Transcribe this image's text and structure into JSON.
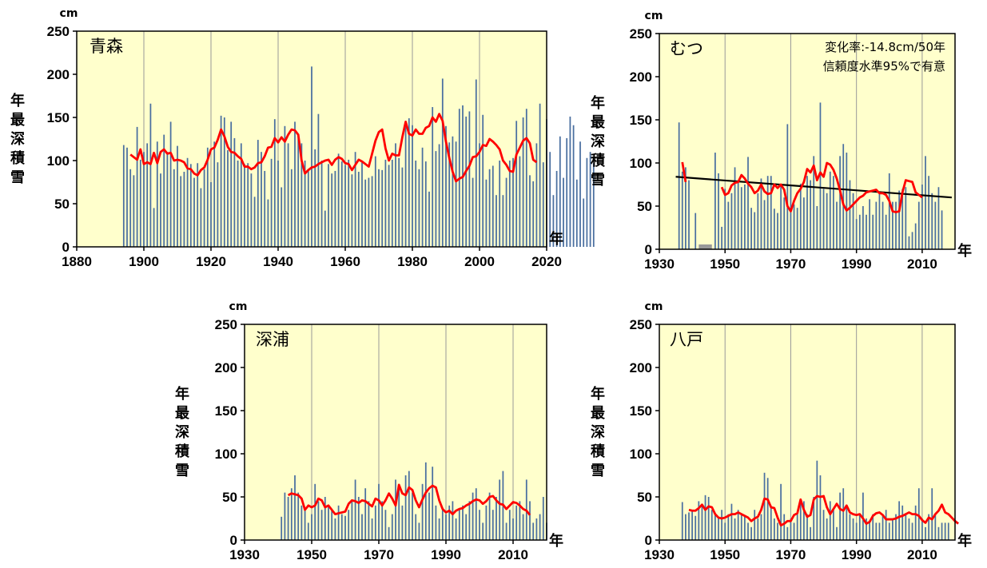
{
  "chart_data": [
    {
      "type": "bar",
      "station": "青森",
      "unit_label": "cm",
      "ylabel": "年最深積雪",
      "xlabel_suffix": "年",
      "xlim": [
        1880,
        2020
      ],
      "ylim": [
        0,
        250
      ],
      "xticks": [
        "1880",
        "1900",
        "1920",
        "1940",
        "1960",
        "1980",
        "2000",
        "2020"
      ],
      "yticks": [
        "0",
        "50",
        "100",
        "150",
        "200",
        "250"
      ],
      "note": [],
      "missing_ranges": [],
      "trend": null,
      "series": [
        {
          "name": "",
          "kind": "bar",
          "color": "#4a6fa0",
          "start_year": 1894,
          "values": [
            118,
            115,
            90,
            83,
            139,
            101,
            110,
            120,
            166,
            45,
            122,
            85,
            130,
            110,
            145,
            90,
            117,
            82,
            87,
            103,
            96,
            80,
            97,
            68,
            90,
            115,
            75,
            122,
            98,
            152,
            150,
            112,
            145,
            126,
            100,
            120,
            96,
            97,
            85,
            58,
            124,
            110,
            88,
            55,
            102,
            148,
            100,
            69,
            140,
            120,
            90,
            145,
            130,
            120,
            100,
            90,
            209,
            113,
            154,
            100,
            42,
            96,
            85,
            88,
            108,
            99,
            95,
            101,
            84,
            110,
            87,
            100,
            78,
            80,
            82,
            105,
            90,
            89,
            101,
            95,
            101,
            120,
            103,
            92,
            141,
            149,
            141,
            100,
            90,
            115,
            99,
            64,
            162,
            111,
            119,
            195,
            140,
            121,
            128,
            122,
            160,
            164,
            151,
            157,
            80,
            194,
            120,
            153,
            78,
            90,
            94,
            60,
            100,
            60,
            80,
            100,
            103,
            146,
            105,
            150,
            160,
            83,
            76,
            120,
            166,
            98,
            148,
            110,
            60,
            88,
            128,
            80,
            126,
            151,
            141,
            78,
            122,
            56,
            103,
            110,
            97
          ]
        },
        {
          "name": "",
          "kind": "line",
          "color": "#ff0000",
          "start_year": 1896,
          "values": [
            107,
            104,
            101,
            113,
            96,
            98,
            96,
            109,
            97,
            110,
            113,
            108,
            109,
            100,
            101,
            100,
            98,
            91,
            90,
            85,
            83,
            89,
            92,
            101,
            113,
            115,
            124,
            136,
            128,
            116,
            110,
            109,
            105,
            102,
            93,
            93,
            90,
            92,
            97,
            98,
            105,
            115,
            116,
            126,
            121,
            127,
            122,
            130,
            136,
            135,
            130,
            100,
            85,
            89,
            92,
            93,
            96,
            98,
            100,
            101,
            95,
            101,
            104,
            102,
            97,
            96,
            89,
            95,
            101,
            99,
            96,
            93,
            108,
            123,
            133,
            136,
            114,
            100,
            108,
            106,
            106,
            127,
            145,
            131,
            129,
            136,
            131,
            131,
            138,
            140,
            150,
            145,
            154,
            146,
            122,
            103,
            87,
            76,
            79,
            81,
            88,
            94,
            104,
            105,
            110,
            118,
            117,
            125,
            122,
            118,
            113,
            100,
            95,
            88,
            87,
            107,
            115,
            123,
            126,
            120,
            101,
            98
          ]
        }
      ]
    },
    {
      "type": "bar",
      "station": "むつ",
      "unit_label": "cm",
      "ylabel": "年最深積雪",
      "xlabel_suffix": "年",
      "xlim": [
        1930,
        2020
      ],
      "ylim": [
        0,
        250
      ],
      "xticks": [
        "1930",
        "1950",
        "1970",
        "1990",
        "2010"
      ],
      "yticks": [
        "0",
        "50",
        "100",
        "150",
        "200",
        "250"
      ],
      "note": [
        "変化率:-14.8cm/50年",
        "信頼度水準95%で有意"
      ],
      "missing_ranges": [
        [
          1942,
          1946
        ]
      ],
      "trend": {
        "color": "#000000",
        "x": [
          1935,
          2019
        ],
        "y": [
          84,
          60
        ]
      },
      "series": [
        {
          "name": "",
          "kind": "bar",
          "color": "#4a6fa0",
          "start_year": 1936,
          "values": [
            147,
            90,
            95,
            80,
            0,
            42,
            0,
            0,
            0,
            0,
            0,
            112,
            88,
            26,
            70,
            55,
            65,
            95,
            80,
            72,
            75,
            107,
            48,
            43,
            65,
            82,
            57,
            85,
            85,
            47,
            42,
            75,
            60,
            145,
            73,
            52,
            48,
            76,
            60,
            85,
            80,
            108,
            50,
            170,
            70,
            65,
            90,
            85,
            55,
            108,
            122,
            112,
            80,
            65,
            35,
            40,
            50,
            40,
            58,
            40,
            55,
            65,
            55,
            40,
            88,
            55,
            55,
            68,
            70,
            72,
            15,
            20,
            30,
            55,
            75,
            108,
            85,
            65,
            55,
            72,
            45
          ]
        },
        {
          "name": "",
          "kind": "line",
          "color": "#ff0000",
          "start_year": 1937,
          "values": [
            101,
            78
          ]
        },
        {
          "name": "",
          "kind": "line",
          "color": "#ff0000",
          "start_year": 1949,
          "values": [
            72,
            63,
            65,
            74,
            77,
            78,
            86,
            82,
            76,
            72,
            65,
            68,
            75,
            67,
            64,
            65,
            75,
            71,
            75,
            69,
            50,
            44,
            56,
            65,
            70,
            78,
            93,
            89,
            97,
            80,
            89,
            84,
            100,
            98,
            92,
            82,
            68,
            52,
            45,
            48,
            52,
            56,
            60,
            62,
            66,
            67,
            68,
            69,
            65,
            65,
            63,
            56,
            44,
            43,
            44,
            66,
            80,
            79,
            78,
            66,
            63,
            60
          ]
        }
      ]
    },
    {
      "type": "bar",
      "station": "深浦",
      "unit_label": "cm",
      "ylabel": "年最深積雪",
      "xlabel_suffix": "年",
      "xlim": [
        1930,
        2020
      ],
      "ylim": [
        0,
        250
      ],
      "xticks": [
        "1930",
        "1950",
        "1970",
        "1990",
        "2010"
      ],
      "yticks": [
        "0",
        "50",
        "100",
        "150",
        "200",
        "250"
      ],
      "note": [],
      "missing_ranges": [],
      "trend": null,
      "series": [
        {
          "name": "",
          "kind": "bar",
          "color": "#4a6fa0",
          "start_year": 1941,
          "values": [
            27,
            55,
            50,
            60,
            75,
            55,
            40,
            35,
            20,
            30,
            65,
            45,
            35,
            50,
            40,
            35,
            25,
            40,
            30,
            28,
            35,
            45,
            70,
            50,
            30,
            60,
            45,
            25,
            40,
            65,
            45,
            35,
            15,
            30,
            70,
            60,
            40,
            75,
            80,
            55,
            30,
            20,
            65,
            90,
            55,
            85,
            40,
            25,
            35,
            30,
            40,
            45,
            25,
            35,
            40,
            30,
            45,
            55,
            60,
            35,
            20,
            40,
            55,
            35,
            50,
            70,
            80,
            20,
            35,
            25,
            40,
            45,
            30,
            70,
            45,
            20,
            25,
            30,
            50,
            20
          ]
        },
        {
          "name": "",
          "kind": "line",
          "color": "#ff0000",
          "start_year": 1943,
          "values": [
            52,
            54,
            53,
            52,
            48,
            35,
            40,
            38,
            40,
            48,
            46,
            38,
            40,
            35,
            30,
            31,
            32,
            33,
            42,
            46,
            45,
            43,
            46,
            45,
            42,
            39,
            48,
            46,
            40,
            46,
            54,
            48,
            40,
            64,
            54,
            52,
            61,
            58,
            46,
            38,
            47,
            55,
            60,
            63,
            61,
            46,
            36,
            32,
            34,
            30,
            34,
            36,
            37,
            40,
            42,
            45,
            47,
            46,
            42,
            45,
            50,
            51,
            46,
            42,
            41,
            36,
            40,
            44,
            43,
            40,
            36,
            34,
            29
          ]
        }
      ]
    },
    {
      "type": "bar",
      "station": "八戸",
      "unit_label": "cm",
      "ylabel": "年最深積雪",
      "xlabel_suffix": "年",
      "xlim": [
        1930,
        2020
      ],
      "ylim": [
        0,
        250
      ],
      "xticks": [
        "1930",
        "1950",
        "1970",
        "1990",
        "2010"
      ],
      "yticks": [
        "0",
        "50",
        "100",
        "150",
        "200",
        "250"
      ],
      "note": [],
      "missing_ranges": [],
      "trend": null,
      "series": [
        {
          "name": "",
          "kind": "bar",
          "color": "#4a6fa0",
          "start_year": 1937,
          "values": [
            44,
            30,
            32,
            35,
            28,
            45,
            40,
            52,
            50,
            35,
            30,
            25,
            35,
            20,
            30,
            42,
            25,
            35,
            30,
            28,
            20,
            15,
            35,
            25,
            30,
            78,
            72,
            40,
            25,
            20,
            65,
            30,
            15,
            25,
            20,
            30,
            42,
            45,
            30,
            15,
            50,
            92,
            75,
            35,
            25,
            45,
            35,
            15,
            55,
            60,
            40,
            30,
            25,
            20,
            30,
            55,
            25,
            20,
            30,
            20,
            20,
            30,
            35,
            20,
            25,
            30,
            45,
            40,
            30,
            25,
            20,
            40,
            60,
            25,
            15,
            30,
            60,
            30,
            15,
            20,
            20,
            20
          ]
        },
        {
          "name": "",
          "kind": "line",
          "color": "#ff0000",
          "start_year": 1939,
          "values": [
            35,
            34,
            34,
            37,
            41,
            35,
            39,
            38,
            30,
            26,
            25,
            26,
            28,
            30,
            30,
            32,
            30,
            28,
            26,
            22,
            25,
            27,
            35,
            48,
            47,
            38,
            37,
            26,
            17,
            19,
            22,
            22,
            29,
            31,
            47,
            35,
            27,
            29,
            47,
            51,
            50,
            51,
            38,
            30,
            36,
            42,
            36,
            34,
            40,
            32,
            30,
            29,
            30,
            25,
            19,
            21,
            28,
            31,
            32,
            29,
            24,
            24,
            24,
            25,
            27,
            28,
            30,
            32,
            30,
            30,
            28,
            23,
            20,
            26,
            24,
            30,
            34,
            41,
            32,
            30,
            26,
            22,
            19
          ]
        }
      ]
    }
  ]
}
